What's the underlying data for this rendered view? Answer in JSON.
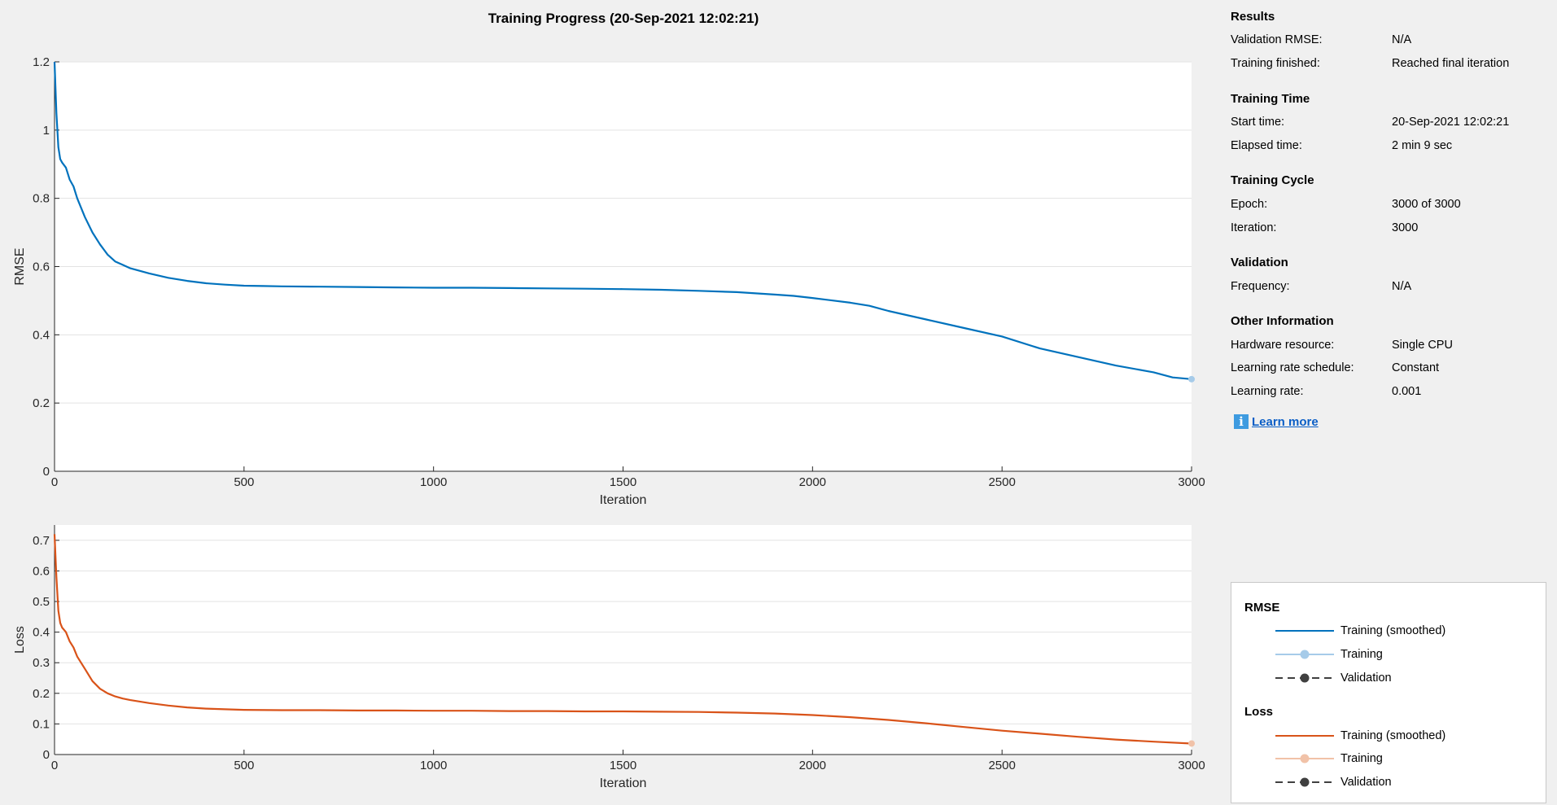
{
  "title": "Training Progress (20-Sep-2021 12:02:21)",
  "colors": {
    "rmse_smoothed": "#0072bd",
    "rmse_training": "#a6cbe9",
    "loss_smoothed": "#d95319",
    "loss_training": "#f1c2a8",
    "validation": "#404040",
    "link": "#0a5ec6",
    "info_icon": "#3e9be0"
  },
  "results": {
    "heading": "Results",
    "rows": [
      {
        "key": "Validation RMSE:",
        "value": "N/A"
      },
      {
        "key": "Training finished:",
        "value": "Reached final iteration"
      }
    ]
  },
  "training_time": {
    "heading": "Training Time",
    "rows": [
      {
        "key": "Start time:",
        "value": "20-Sep-2021 12:02:21"
      },
      {
        "key": "Elapsed time:",
        "value": "2 min 9 sec"
      }
    ]
  },
  "training_cycle": {
    "heading": "Training Cycle",
    "rows": [
      {
        "key": "Epoch:",
        "value": "3000 of 3000"
      },
      {
        "key": "Iteration:",
        "value": "3000"
      }
    ]
  },
  "validation": {
    "heading": "Validation",
    "rows": [
      {
        "key": "Frequency:",
        "value": "N/A"
      }
    ]
  },
  "other_information": {
    "heading": "Other Information",
    "rows": [
      {
        "key": "Hardware resource:",
        "value": "Single CPU"
      },
      {
        "key": "Learning rate schedule:",
        "value": "Constant"
      },
      {
        "key": "Learning rate:",
        "value": "0.001"
      }
    ]
  },
  "learn_more": {
    "label": "Learn more",
    "icon": "info-icon"
  },
  "legend": {
    "rmse_heading": "RMSE",
    "loss_heading": "Loss",
    "training_smoothed": "Training (smoothed)",
    "training": "Training",
    "validation": "Validation"
  },
  "chart_data": [
    {
      "type": "line",
      "title": "",
      "xlabel": "Iteration",
      "ylabel": "RMSE",
      "xlim": [
        0,
        3000
      ],
      "ylim": [
        0,
        1.2
      ],
      "xticks": [
        "0",
        "500",
        "1000",
        "1500",
        "2000",
        "2500",
        "3000"
      ],
      "yticks": [
        "0",
        "0.2",
        "0.4",
        "0.6",
        "0.8",
        "1",
        "1.2"
      ],
      "grid": true,
      "series": [
        {
          "name": "Training (smoothed)",
          "x": [
            0,
            5,
            10,
            15,
            20,
            30,
            40,
            50,
            60,
            80,
            100,
            120,
            140,
            160,
            180,
            200,
            250,
            300,
            350,
            400,
            450,
            500,
            550,
            600,
            700,
            800,
            900,
            1000,
            1100,
            1200,
            1300,
            1400,
            1500,
            1600,
            1700,
            1800,
            1900,
            1950,
            2000,
            2100,
            2150,
            2200,
            2300,
            2400,
            2500,
            2600,
            2700,
            2800,
            2900,
            2950,
            3000
          ],
          "y": [
            1.2,
            1.05,
            0.95,
            0.915,
            0.905,
            0.89,
            0.855,
            0.835,
            0.8,
            0.745,
            0.7,
            0.665,
            0.635,
            0.615,
            0.605,
            0.595,
            0.58,
            0.567,
            0.558,
            0.551,
            0.547,
            0.544,
            0.543,
            0.542,
            0.541,
            0.54,
            0.539,
            0.538,
            0.538,
            0.537,
            0.536,
            0.535,
            0.534,
            0.532,
            0.529,
            0.525,
            0.518,
            0.514,
            0.508,
            0.494,
            0.485,
            0.47,
            0.445,
            0.42,
            0.395,
            0.36,
            0.335,
            0.31,
            0.29,
            0.275,
            0.27
          ]
        },
        {
          "name": "Training",
          "x": [
            3000
          ],
          "y": [
            0.27
          ]
        }
      ]
    },
    {
      "type": "line",
      "title": "",
      "xlabel": "Iteration",
      "ylabel": "Loss",
      "xlim": [
        0,
        3000
      ],
      "ylim": [
        0,
        0.75
      ],
      "xticks": [
        "0",
        "500",
        "1000",
        "1500",
        "2000",
        "2500",
        "3000"
      ],
      "yticks": [
        "0",
        "0.1",
        "0.2",
        "0.3",
        "0.4",
        "0.5",
        "0.6",
        "0.7"
      ],
      "grid": true,
      "series": [
        {
          "name": "Training (smoothed)",
          "x": [
            0,
            5,
            10,
            15,
            20,
            30,
            40,
            50,
            60,
            80,
            100,
            120,
            140,
            160,
            180,
            200,
            250,
            300,
            350,
            400,
            450,
            500,
            600,
            700,
            800,
            900,
            1000,
            1100,
            1200,
            1300,
            1400,
            1500,
            1600,
            1700,
            1800,
            1900,
            2000,
            2100,
            2200,
            2300,
            2400,
            2500,
            2600,
            2700,
            2800,
            2900,
            3000
          ],
          "y": [
            0.72,
            0.58,
            0.47,
            0.43,
            0.415,
            0.4,
            0.37,
            0.35,
            0.32,
            0.28,
            0.24,
            0.215,
            0.2,
            0.19,
            0.183,
            0.178,
            0.168,
            0.16,
            0.154,
            0.15,
            0.148,
            0.146,
            0.145,
            0.145,
            0.144,
            0.144,
            0.143,
            0.143,
            0.142,
            0.142,
            0.141,
            0.141,
            0.14,
            0.139,
            0.137,
            0.134,
            0.129,
            0.122,
            0.113,
            0.102,
            0.09,
            0.078,
            0.068,
            0.058,
            0.049,
            0.042,
            0.036
          ]
        },
        {
          "name": "Training",
          "x": [
            3000
          ],
          "y": [
            0.036
          ]
        }
      ]
    }
  ]
}
